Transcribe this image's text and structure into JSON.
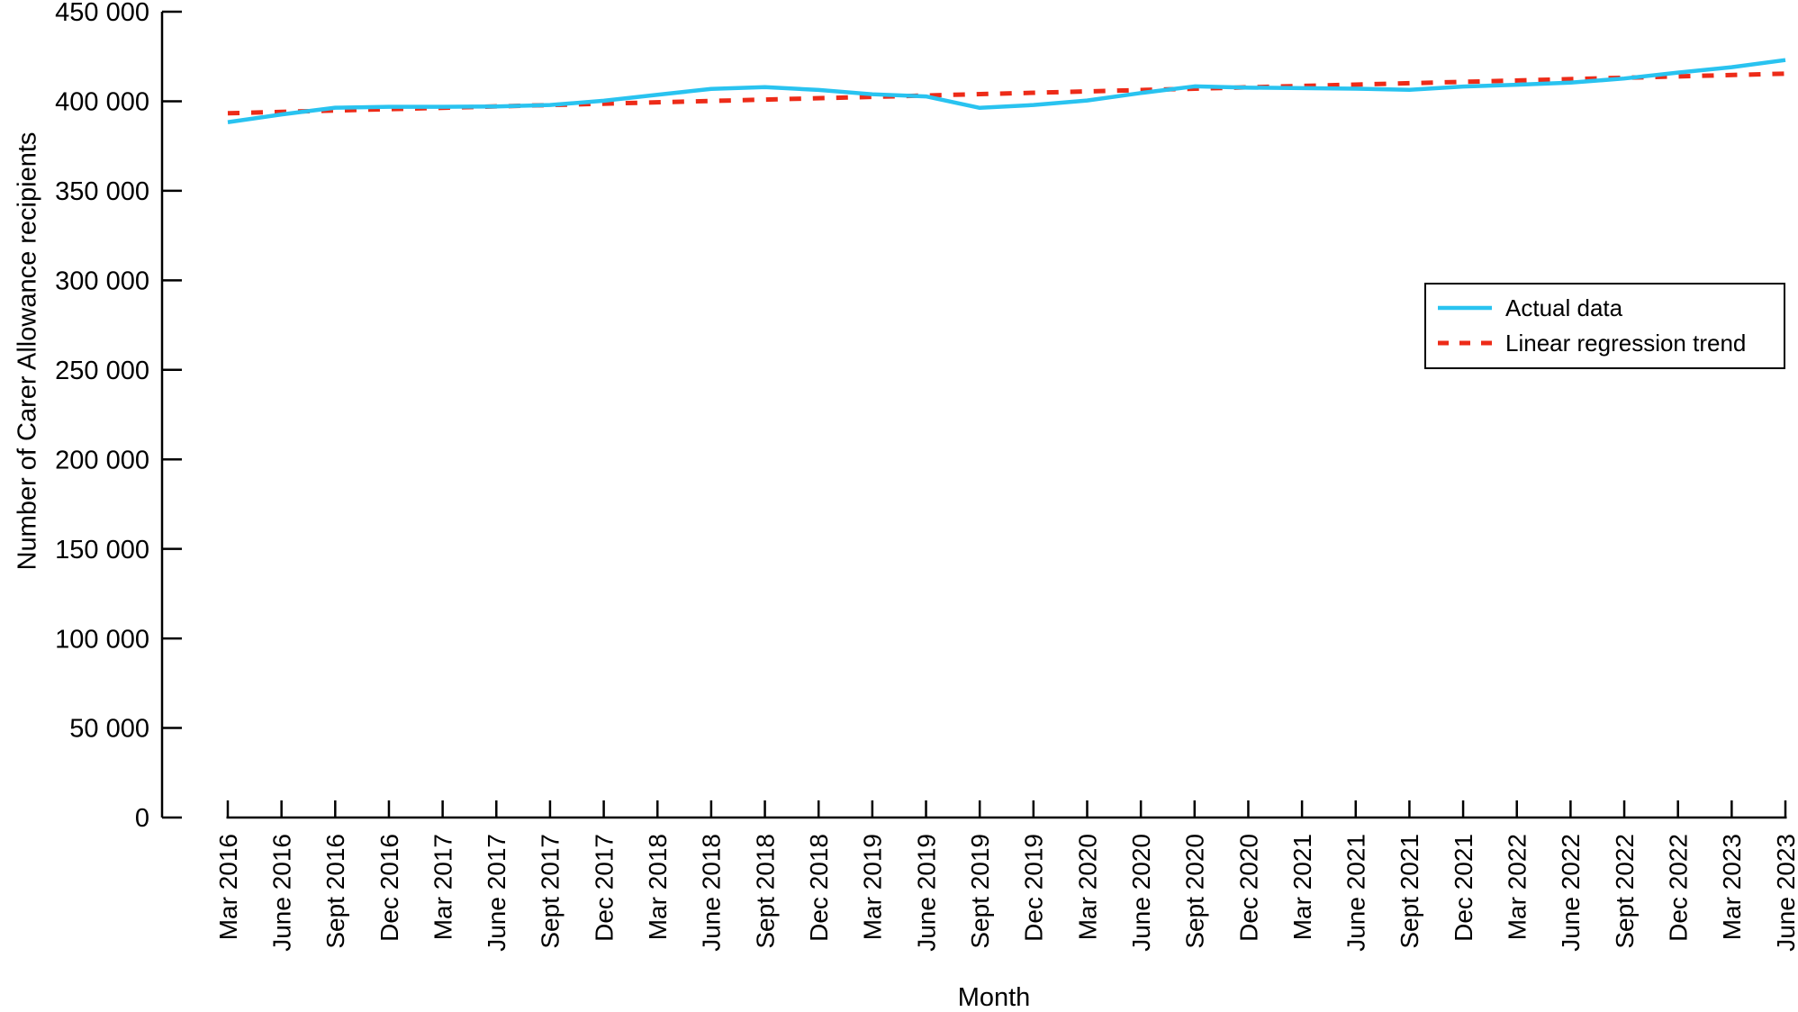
{
  "chart_data": {
    "type": "line",
    "title": "",
    "xlabel": "Month",
    "ylabel": "Number of Carer Allowance recipients",
    "categories": [
      "Mar 2016",
      "June 2016",
      "Sept 2016",
      "Dec 2016",
      "Mar 2017",
      "June 2017",
      "Sept 2017",
      "Dec 2017",
      "Mar 2018",
      "June 2018",
      "Sept 2018",
      "Dec 2018",
      "Mar 2019",
      "June 2019",
      "Sept 2019",
      "Dec 2019",
      "Mar 2020",
      "June 2020",
      "Sept 2020",
      "Dec 2020",
      "Mar 2021",
      "June 2021",
      "Sept 2021",
      "Dec 2021",
      "Mar 2022",
      "June 2022",
      "Sept 2022",
      "Dec 2022",
      "Mar 2023",
      "June 2023"
    ],
    "series": [
      {
        "name": "Actual data",
        "color": "#29c3f0",
        "line_style": "solid",
        "values": [
          388300,
          392600,
          396400,
          396900,
          396900,
          397100,
          397900,
          400300,
          403600,
          406900,
          407900,
          406300,
          403900,
          402700,
          396300,
          397900,
          400400,
          404600,
          408300,
          407600,
          407300,
          407000,
          406400,
          408200,
          409200,
          410400,
          412700,
          416000,
          419000,
          423000
        ]
      },
      {
        "name": "Linear regression trend",
        "color": "#ed2b18",
        "line_style": "dashed",
        "trend_start": 393300,
        "trend_end": 415400
      }
    ],
    "ylim": [
      0,
      450000
    ],
    "y_ticks": {
      "values": [
        0,
        50000,
        100000,
        150000,
        200000,
        250000,
        300000,
        350000,
        400000,
        450000
      ],
      "labels": [
        "0",
        "50 000",
        "100 000",
        "150 000",
        "200 000",
        "250 000",
        "300 000",
        "350 000",
        "400 000",
        "450 000"
      ]
    },
    "x_tick_label_rotation": -90,
    "grid": false,
    "legend_position": "middle-right",
    "axis_color": "#000000",
    "background_color": "#ffffff"
  }
}
